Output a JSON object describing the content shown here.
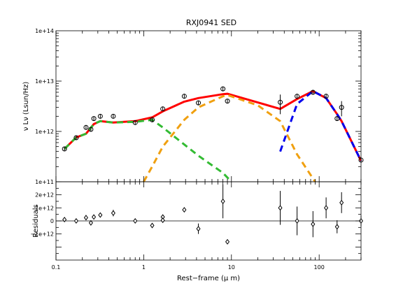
{
  "chart_data": {
    "type": "scatter",
    "title": "RXJ0941 SED",
    "xlabel": "Rest−frame (μ m)",
    "x_scale": "log",
    "xlim": [
      0.1,
      300
    ],
    "x_ticks": [
      {
        "value": 0.1,
        "label": "0.1"
      },
      {
        "value": 1,
        "label": "1"
      },
      {
        "value": 10,
        "label": "10"
      },
      {
        "value": 100,
        "label": "100"
      }
    ],
    "panels": [
      {
        "name": "sed",
        "ylabel": "ν Lν (Lsun/Hz)",
        "y_scale": "log",
        "ylim": [
          100000000000.0,
          100000000000000.0
        ],
        "y_ticks": [
          {
            "value": 100000000000.0,
            "label": "1e+11"
          },
          {
            "value": 1000000000000.0,
            "label": "1e+12"
          },
          {
            "value": 10000000000000.0,
            "label": "1e+13"
          },
          {
            "value": 100000000000000.0,
            "label": "1e+14"
          }
        ],
        "data_points": [
          {
            "x": 0.125,
            "y": 450000000000.0
          },
          {
            "x": 0.17,
            "y": 750000000000.0
          },
          {
            "x": 0.22,
            "y": 1200000000000.0
          },
          {
            "x": 0.25,
            "y": 1100000000000.0
          },
          {
            "x": 0.27,
            "y": 1800000000000.0
          },
          {
            "x": 0.32,
            "y": 2000000000000.0
          },
          {
            "x": 0.45,
            "y": 2000000000000.0
          },
          {
            "x": 0.8,
            "y": 1500000000000.0
          },
          {
            "x": 1.25,
            "y": 1700000000000.0
          },
          {
            "x": 1.65,
            "y": 2800000000000.0
          },
          {
            "x": 2.9,
            "y": 5000000000000.0
          },
          {
            "x": 4.2,
            "y": 3700000000000.0
          },
          {
            "x": 8.0,
            "y": 7000000000000.0
          },
          {
            "x": 9.0,
            "y": 4000000000000.0
          },
          {
            "x": 36,
            "y": 3800000000000.0,
            "err": 1600000000000.0
          },
          {
            "x": 56,
            "y": 5000000000000.0
          },
          {
            "x": 85,
            "y": 6000000000000.0
          },
          {
            "x": 120,
            "y": 5000000000000.0
          },
          {
            "x": 160,
            "y": 1800000000000.0
          },
          {
            "x": 180,
            "y": 3000000000000.0,
            "err": 1000000000000.0
          },
          {
            "x": 300,
            "y": 270000000000.0
          }
        ],
        "series": [
          {
            "name": "",
            "color": "#ff0000",
            "style": "solid",
            "points": [
              [
                0.125,
                450000000000.0
              ],
              [
                0.17,
                760000000000.0
              ],
              [
                0.22,
                900000000000.0
              ],
              [
                0.27,
                1400000000000.0
              ],
              [
                0.32,
                1600000000000.0
              ],
              [
                0.45,
                1500000000000.0
              ],
              [
                0.8,
                1600000000000.0
              ],
              [
                1.25,
                1900000000000.0
              ],
              [
                1.65,
                2500000000000.0
              ],
              [
                2.9,
                3900000000000.0
              ],
              [
                4.2,
                4600000000000.0
              ],
              [
                8.0,
                5500000000000.0
              ],
              [
                9.0,
                5600000000000.0
              ],
              [
                36,
                2800000000000.0
              ],
              [
                56,
                4400000000000.0
              ],
              [
                85,
                6300000000000.0
              ],
              [
                120,
                4600000000000.0
              ],
              [
                160,
                2200000000000.0
              ],
              [
                180,
                1600000000000.0
              ],
              [
                300,
                260000000000.0
              ]
            ]
          },
          {
            "name": "",
            "color": "#33bb33",
            "style": "dashed",
            "points": [
              [
                0.125,
                450000000000.0
              ],
              [
                0.17,
                760000000000.0
              ],
              [
                0.22,
                900000000000.0
              ],
              [
                0.27,
                1400000000000.0
              ],
              [
                0.32,
                1600000000000.0
              ],
              [
                0.45,
                1500000000000.0
              ],
              [
                0.8,
                1550000000000.0
              ],
              [
                1.25,
                1700000000000.0
              ],
              [
                1.65,
                1200000000000.0
              ],
              [
                2.9,
                550000000000.0
              ],
              [
                4.2,
                330000000000.0
              ],
              [
                8.0,
                150000000000.0
              ],
              [
                10,
                100000000000.0
              ]
            ]
          },
          {
            "name": "",
            "color": "#f0a010",
            "style": "dashed",
            "points": [
              [
                1.0,
                100000000000.0
              ],
              [
                1.25,
                200000000000.0
              ],
              [
                1.65,
                500000000000.0
              ],
              [
                2.9,
                1700000000000.0
              ],
              [
                4.2,
                3000000000000.0
              ],
              [
                8.0,
                5000000000000.0
              ],
              [
                9.0,
                5300000000000.0
              ],
              [
                20,
                3300000000000.0
              ],
              [
                36,
                1600000000000.0
              ],
              [
                56,
                350000000000.0
              ],
              [
                90,
                100000000000.0
              ]
            ]
          },
          {
            "name": "",
            "color": "#0000ee",
            "style": "dashed",
            "points": [
              [
                36,
                400000000000.0
              ],
              [
                56,
                3500000000000.0
              ],
              [
                85,
                6300000000000.0
              ],
              [
                120,
                4600000000000.0
              ],
              [
                160,
                2200000000000.0
              ],
              [
                180,
                1600000000000.0
              ],
              [
                300,
                260000000000.0
              ]
            ]
          }
        ]
      },
      {
        "name": "residuals",
        "ylabel": "Residuals",
        "y_scale": "linear",
        "ylim": [
          -3000000000000.0,
          3000000000000.0
        ],
        "y_ticks": [
          {
            "value": -1000000000000.0,
            "label": "−1e+12"
          },
          {
            "value": 0,
            "label": "0"
          },
          {
            "value": 1000000000000.0,
            "label": "1e+12"
          },
          {
            "value": 2000000000000.0,
            "label": "2e+12"
          }
        ],
        "zero_line": true,
        "data_points": [
          {
            "x": 0.125,
            "y": 100000000000.0
          },
          {
            "x": 0.17,
            "y": 0
          },
          {
            "x": 0.22,
            "y": 250000000000.0,
            "err": 200000000000.0
          },
          {
            "x": 0.25,
            "y": -150000000000.0
          },
          {
            "x": 0.27,
            "y": 300000000000.0,
            "err": 150000000000.0
          },
          {
            "x": 0.32,
            "y": 450000000000.0
          },
          {
            "x": 0.45,
            "y": 600000000000.0,
            "err": 250000000000.0
          },
          {
            "x": 0.8,
            "y": 0
          },
          {
            "x": 1.25,
            "y": -350000000000.0
          },
          {
            "x": 1.65,
            "y": 300000000000.0
          },
          {
            "x": 1.65,
            "y": 50000000000.0
          },
          {
            "x": 2.9,
            "y": 850000000000.0
          },
          {
            "x": 4.2,
            "y": -600000000000.0,
            "err": 400000000000.0
          },
          {
            "x": 8.0,
            "y": 1500000000000.0,
            "err": 1300000000000.0
          },
          {
            "x": 9.0,
            "y": -1600000000000.0
          },
          {
            "x": 36,
            "y": 1000000000000.0,
            "err": 1300000000000.0
          },
          {
            "x": 56,
            "y": 0,
            "err": 1100000000000.0
          },
          {
            "x": 85,
            "y": -250000000000.0,
            "err": 1000000000000.0
          },
          {
            "x": 120,
            "y": 1000000000000.0,
            "err": 800000000000.0
          },
          {
            "x": 160,
            "y": -450000000000.0,
            "err": 500000000000.0
          },
          {
            "x": 180,
            "y": 1400000000000.0,
            "err": 800000000000.0
          },
          {
            "x": 300,
            "y": 0,
            "err": 400000000000.0
          }
        ]
      }
    ]
  }
}
